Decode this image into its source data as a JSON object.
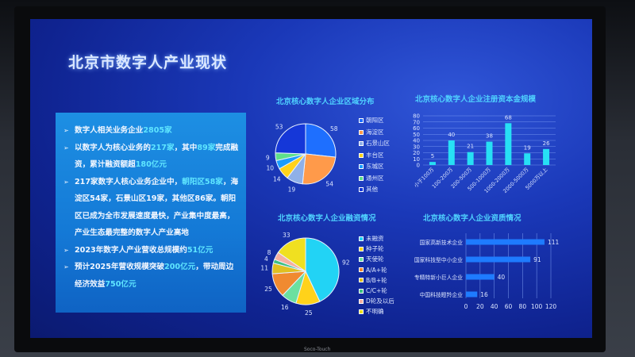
{
  "title": "北京市数字人产业现状",
  "device_brand": "Soco-Touch",
  "bullets": [
    {
      "parts": [
        [
          "数字人相关业务企业",
          0
        ],
        [
          "2805家",
          1
        ]
      ]
    },
    {
      "parts": [
        [
          "以数字人为核心业务的",
          0
        ],
        [
          "217家",
          1
        ],
        [
          "，其中",
          0
        ],
        [
          "89家",
          1
        ],
        [
          "完成融资，累计融资额超",
          0
        ],
        [
          "180亿元",
          1
        ]
      ]
    },
    {
      "parts": [
        [
          "217家数字人核心业务企业中，",
          0
        ],
        [
          "朝阳区58家",
          1
        ],
        [
          "，海淀区54家，石景山区19家，其他区86家。朝阳区已成为全市发展速度最快，产业集中度最高，产业生态最完整的数字人产业高地",
          0
        ]
      ]
    },
    {
      "parts": [
        [
          "2023年数字人产业营收总规模约",
          0
        ],
        [
          "51亿元",
          1
        ]
      ]
    },
    {
      "parts": [
        [
          "预计2025年营收规模突破",
          0
        ],
        [
          "200亿元",
          1
        ],
        [
          "，带动周边经济效益",
          0
        ],
        [
          "750亿元",
          1
        ]
      ]
    }
  ],
  "chart_data": [
    {
      "type": "pie",
      "title": "北京核心数字人企业区域分布",
      "categories": [
        "朝阳区",
        "海淀区",
        "石景山区",
        "丰台区",
        "东城区",
        "通州区",
        "其他"
      ],
      "values": [
        58,
        54,
        19,
        14,
        10,
        9,
        53
      ],
      "colors": [
        "#1e6fff",
        "#ff9a4a",
        "#8fb0e8",
        "#ffd21a",
        "#1a9cff",
        "#5ee08a",
        "#1537d8"
      ],
      "legend": "right"
    },
    {
      "type": "bar",
      "title": "北京核心数字人企业注册资本金规模",
      "categories": [
        "小于100万",
        "100-200万",
        "200-500万",
        "500-1000万",
        "1000-2000万",
        "2000-5000万",
        "5000万以上"
      ],
      "values": [
        5,
        40,
        21,
        38,
        68,
        19,
        26
      ],
      "yticks": [
        0,
        10,
        20,
        30,
        40,
        50,
        60,
        70,
        80
      ],
      "ylim": [
        0,
        80
      ],
      "grid": true,
      "color": "#27e0f5"
    },
    {
      "type": "pie",
      "title": "北京核心数字人企业融资情况",
      "categories": [
        "未融资",
        "种子轮",
        "天使轮",
        "A/A+轮",
        "B/B+轮",
        "C/C+轮",
        "D轮及以后",
        "不明确"
      ],
      "values": [
        92,
        25,
        16,
        25,
        11,
        4,
        8,
        33
      ],
      "colors": [
        "#22d3f5",
        "#ffd21a",
        "#6be0a0",
        "#f08a30",
        "#e0c020",
        "#3cc080",
        "#f5b0a0",
        "#f0e020"
      ],
      "legend": "right"
    },
    {
      "type": "bar",
      "orientation": "horizontal",
      "title": "北京核心数字人企业资质情况",
      "categories": [
        "国家高新技术企业",
        "国家科技型中小企业",
        "专精特新小巨人企业",
        "中国科技瞪羚企业"
      ],
      "values": [
        111,
        91,
        40,
        16
      ],
      "xticks": [
        0,
        20,
        40,
        60,
        80,
        100,
        120
      ],
      "xlim": [
        0,
        120
      ],
      "grid": true,
      "color": "#1e7bff"
    }
  ]
}
